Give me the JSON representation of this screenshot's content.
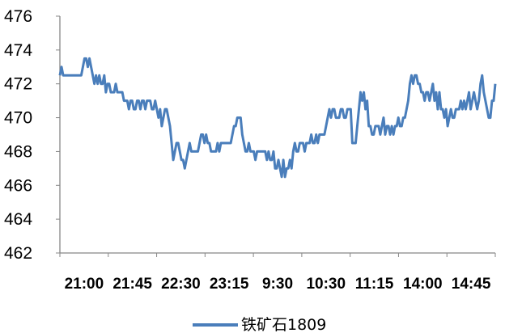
{
  "chart_data": {
    "type": "line",
    "title": "",
    "xlabel": "",
    "ylabel": "",
    "ylim": [
      462,
      476
    ],
    "yticks": [
      462,
      464,
      466,
      468,
      470,
      472,
      474,
      476
    ],
    "xtick_labels": [
      "21:00",
      "21:45",
      "22:30",
      "23:15",
      "9:30",
      "10:30",
      "11:15",
      "14:00",
      "14:45"
    ],
    "grid": false,
    "legend_position": "bottom",
    "color": "#4a7ebb",
    "series": [
      {
        "name": "铁矿石1809",
        "values": [
          472.5,
          473.0,
          472.5,
          472.5,
          472.5,
          472.5,
          472.5,
          472.5,
          472.5,
          472.5,
          472.5,
          472.5,
          472.5,
          472.5,
          473.0,
          473.5,
          473.5,
          473.0,
          473.5,
          473.0,
          472.5,
          472.0,
          472.5,
          472.0,
          472.5,
          472.0,
          472.0,
          472.5,
          471.5,
          472.0,
          472.0,
          471.5,
          471.5,
          471.5,
          472.0,
          471.5,
          471.5,
          471.5,
          471.5,
          471.0,
          471.0,
          471.0,
          470.5,
          471.0,
          471.0,
          470.5,
          470.5,
          471.0,
          471.0,
          470.5,
          471.0,
          471.0,
          470.5,
          471.0,
          471.0,
          471.0,
          470.5,
          470.5,
          471.0,
          470.5,
          470.0,
          470.5,
          469.5,
          470.0,
          470.5,
          470.5,
          470.0,
          469.5,
          468.5,
          467.5,
          468.0,
          468.5,
          468.5,
          468.0,
          467.5,
          467.5,
          467.0,
          467.5,
          468.0,
          468.5,
          468.0,
          468.0,
          468.0,
          468.0,
          468.0,
          468.5,
          469.0,
          469.0,
          468.5,
          469.0,
          468.5,
          468.5,
          468.0,
          468.0,
          468.0,
          468.0,
          468.5,
          468.0,
          468.5,
          468.5,
          468.5,
          468.5,
          468.5,
          468.5,
          468.5,
          469.0,
          469.5,
          469.5,
          470.0,
          470.0,
          470.0,
          469.0,
          468.5,
          468.0,
          468.0,
          468.5,
          468.0,
          468.0,
          468.0,
          467.5,
          468.0,
          468.0,
          468.0,
          468.0,
          468.0,
          468.0,
          467.5,
          468.0,
          467.5,
          467.5,
          468.0,
          467.0,
          467.0,
          467.5,
          467.0,
          466.5,
          467.5,
          466.5,
          467.0,
          467.0,
          467.5,
          467.0,
          468.0,
          468.5,
          468.0,
          468.0,
          468.5,
          468.5,
          468.5,
          468.0,
          468.5,
          468.5,
          468.5,
          469.0,
          468.5,
          468.5,
          469.0,
          468.5,
          469.0,
          469.0,
          469.0,
          469.0,
          469.5,
          470.0,
          470.5,
          470.0,
          470.5,
          470.5,
          470.0,
          470.0,
          470.0,
          470.5,
          470.5,
          470.0,
          470.0,
          470.5,
          470.5,
          470.5,
          468.5,
          468.5,
          468.5,
          469.5,
          470.5,
          471.5,
          471.0,
          471.5,
          470.5,
          471.0,
          469.5,
          469.5,
          469.0,
          469.0,
          469.5,
          469.5,
          469.5,
          469.0,
          469.5,
          470.0,
          469.0,
          469.5,
          469.5,
          469.0,
          469.5,
          469.0,
          469.5,
          469.5,
          470.0,
          469.5,
          469.5,
          470.0,
          470.0,
          470.5,
          471.0,
          472.0,
          472.5,
          472.0,
          472.5,
          472.5,
          472.0,
          472.0,
          471.5,
          471.5,
          471.0,
          471.5,
          471.5,
          471.0,
          471.5,
          472.0,
          471.0,
          471.5,
          470.5,
          471.5,
          470.5,
          470.5,
          470.0,
          470.5,
          469.5,
          470.0,
          470.5,
          470.0,
          470.0,
          470.5,
          470.5,
          470.5,
          471.0,
          470.5,
          471.0,
          470.5,
          471.0,
          471.5,
          470.5,
          471.0,
          471.5,
          471.0,
          470.5,
          471.0,
          472.0,
          472.5,
          471.5,
          471.0,
          470.5,
          470.0,
          470.0,
          471.0,
          471.0,
          472.0
        ]
      }
    ]
  }
}
